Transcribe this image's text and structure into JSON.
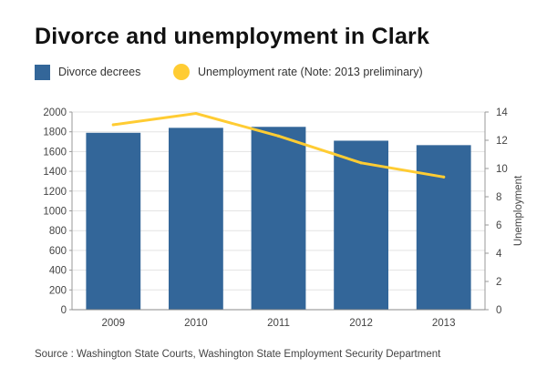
{
  "chart_data": {
    "type": "bar+line",
    "title": "Divorce and unemployment in Clark",
    "categories": [
      "2009",
      "2010",
      "2011",
      "2012",
      "2013"
    ],
    "series": [
      {
        "name": "Divorce decrees",
        "type": "bar",
        "axis": "left",
        "color": "#336699",
        "values": [
          1790,
          1840,
          1850,
          1710,
          1665
        ]
      },
      {
        "name": "Unemployment rate (Note: 2013 preliminary)",
        "type": "line",
        "axis": "right",
        "color": "#FFCC33",
        "values": [
          13.1,
          13.9,
          12.3,
          10.4,
          9.4
        ]
      }
    ],
    "y_left": {
      "label": "",
      "lim": [
        0,
        2000
      ],
      "ticks": [
        0,
        200,
        400,
        600,
        800,
        1000,
        1200,
        1400,
        1600,
        1800,
        2000
      ]
    },
    "y_right": {
      "label": "Unemployment",
      "lim": [
        0,
        14
      ],
      "ticks": [
        0,
        2,
        4,
        6,
        8,
        10,
        12,
        14
      ]
    },
    "grid": true,
    "legend_position": "top-left"
  },
  "source": "Source : Washington State Courts, Washington State Employment Security Department"
}
